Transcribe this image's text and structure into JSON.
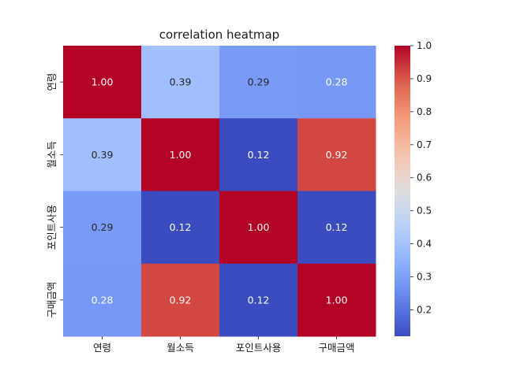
{
  "chart_data": {
    "type": "heatmap",
    "title": "correlation heatmap",
    "xlabel": "",
    "ylabel": "",
    "x_categories": [
      "연령",
      "월소득",
      "포인트사용",
      "구매금액"
    ],
    "y_categories": [
      "연령",
      "월소득",
      "포인트사용",
      "구매금액"
    ],
    "values": [
      [
        1.0,
        0.39,
        0.29,
        0.28
      ],
      [
        0.39,
        1.0,
        0.12,
        0.92
      ],
      [
        0.29,
        0.12,
        1.0,
        0.12
      ],
      [
        0.28,
        0.92,
        0.12,
        1.0
      ]
    ],
    "value_labels": [
      [
        "1.00",
        "0.39",
        "0.29",
        "0.28"
      ],
      [
        "0.39",
        "1.00",
        "0.12",
        "0.92"
      ],
      [
        "0.29",
        "0.12",
        "1.00",
        "0.12"
      ],
      [
        "0.28",
        "0.92",
        "0.12",
        "1.00"
      ]
    ],
    "colormap": "coolwarm",
    "vmin": 0.12,
    "vmax": 1.0,
    "colorbar_ticks": [
      0.2,
      0.3,
      0.4,
      0.5,
      0.6,
      0.7,
      0.8,
      0.9,
      1.0
    ],
    "colorbar_tick_labels": [
      "0.2",
      "0.3",
      "0.4",
      "0.5",
      "0.6",
      "0.7",
      "0.8",
      "0.9",
      "1.0"
    ]
  }
}
